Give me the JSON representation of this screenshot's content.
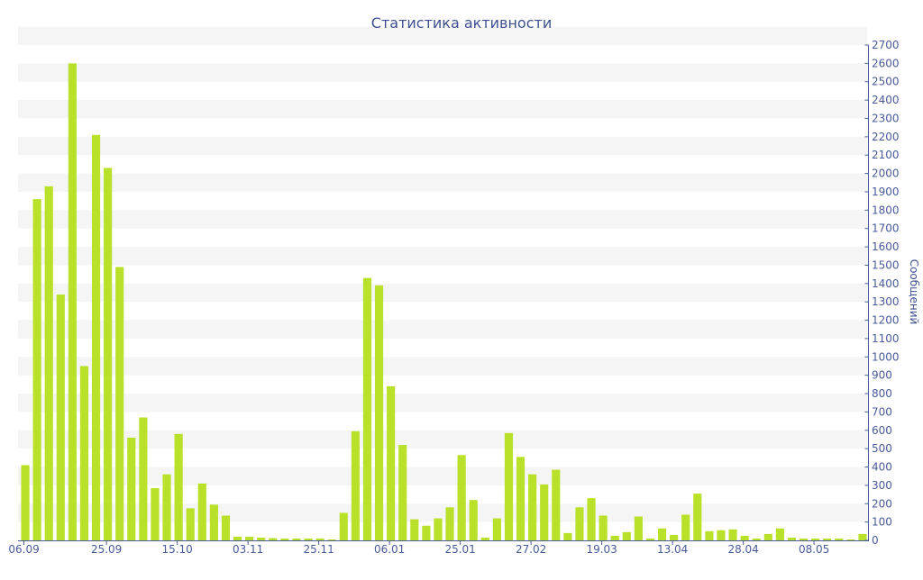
{
  "chart_data": {
    "type": "bar",
    "title": "Статистика активности",
    "ylabel": "Сообщений",
    "xlabel": "",
    "ylim": [
      0,
      2700
    ],
    "y_ticks": [
      0,
      100,
      200,
      300,
      400,
      500,
      600,
      700,
      800,
      900,
      1000,
      1100,
      1200,
      1300,
      1400,
      1500,
      1600,
      1700,
      1800,
      1900,
      2000,
      2100,
      2200,
      2300,
      2400,
      2500,
      2600,
      2700
    ],
    "x_tick_labels": [
      {
        "label": "06.09",
        "index": 0
      },
      {
        "label": "25.09",
        "index": 7
      },
      {
        "label": "15.10",
        "index": 13
      },
      {
        "label": "03.11",
        "index": 19
      },
      {
        "label": "25.11",
        "index": 25
      },
      {
        "label": "06.01",
        "index": 31
      },
      {
        "label": "25.01",
        "index": 37
      },
      {
        "label": "27.02",
        "index": 43
      },
      {
        "label": "19.03",
        "index": 49
      },
      {
        "label": "13.04",
        "index": 55
      },
      {
        "label": "28.04",
        "index": 61
      },
      {
        "label": "08.05",
        "index": 67
      }
    ],
    "values": [
      410,
      1860,
      1930,
      1340,
      2600,
      950,
      2210,
      2030,
      1490,
      560,
      670,
      285,
      360,
      580,
      175,
      310,
      195,
      135,
      20,
      20,
      15,
      12,
      10,
      10,
      10,
      10,
      5,
      150,
      595,
      1430,
      1390,
      840,
      520,
      115,
      80,
      120,
      180,
      465,
      220,
      15,
      120,
      585,
      455,
      360,
      305,
      385,
      40,
      180,
      230,
      135,
      25,
      45,
      130,
      10,
      65,
      30,
      140,
      255,
      50,
      55,
      60,
      25,
      10,
      35,
      65,
      15,
      10,
      10,
      10,
      10,
      5,
      35
    ],
    "grid": "horizontal bands",
    "y_axis_position": "right",
    "colors": {
      "bar": "#b9e12a",
      "band": "#f5f5f5",
      "axis": "#4a5a9a",
      "title": "#3d4f8f"
    }
  }
}
